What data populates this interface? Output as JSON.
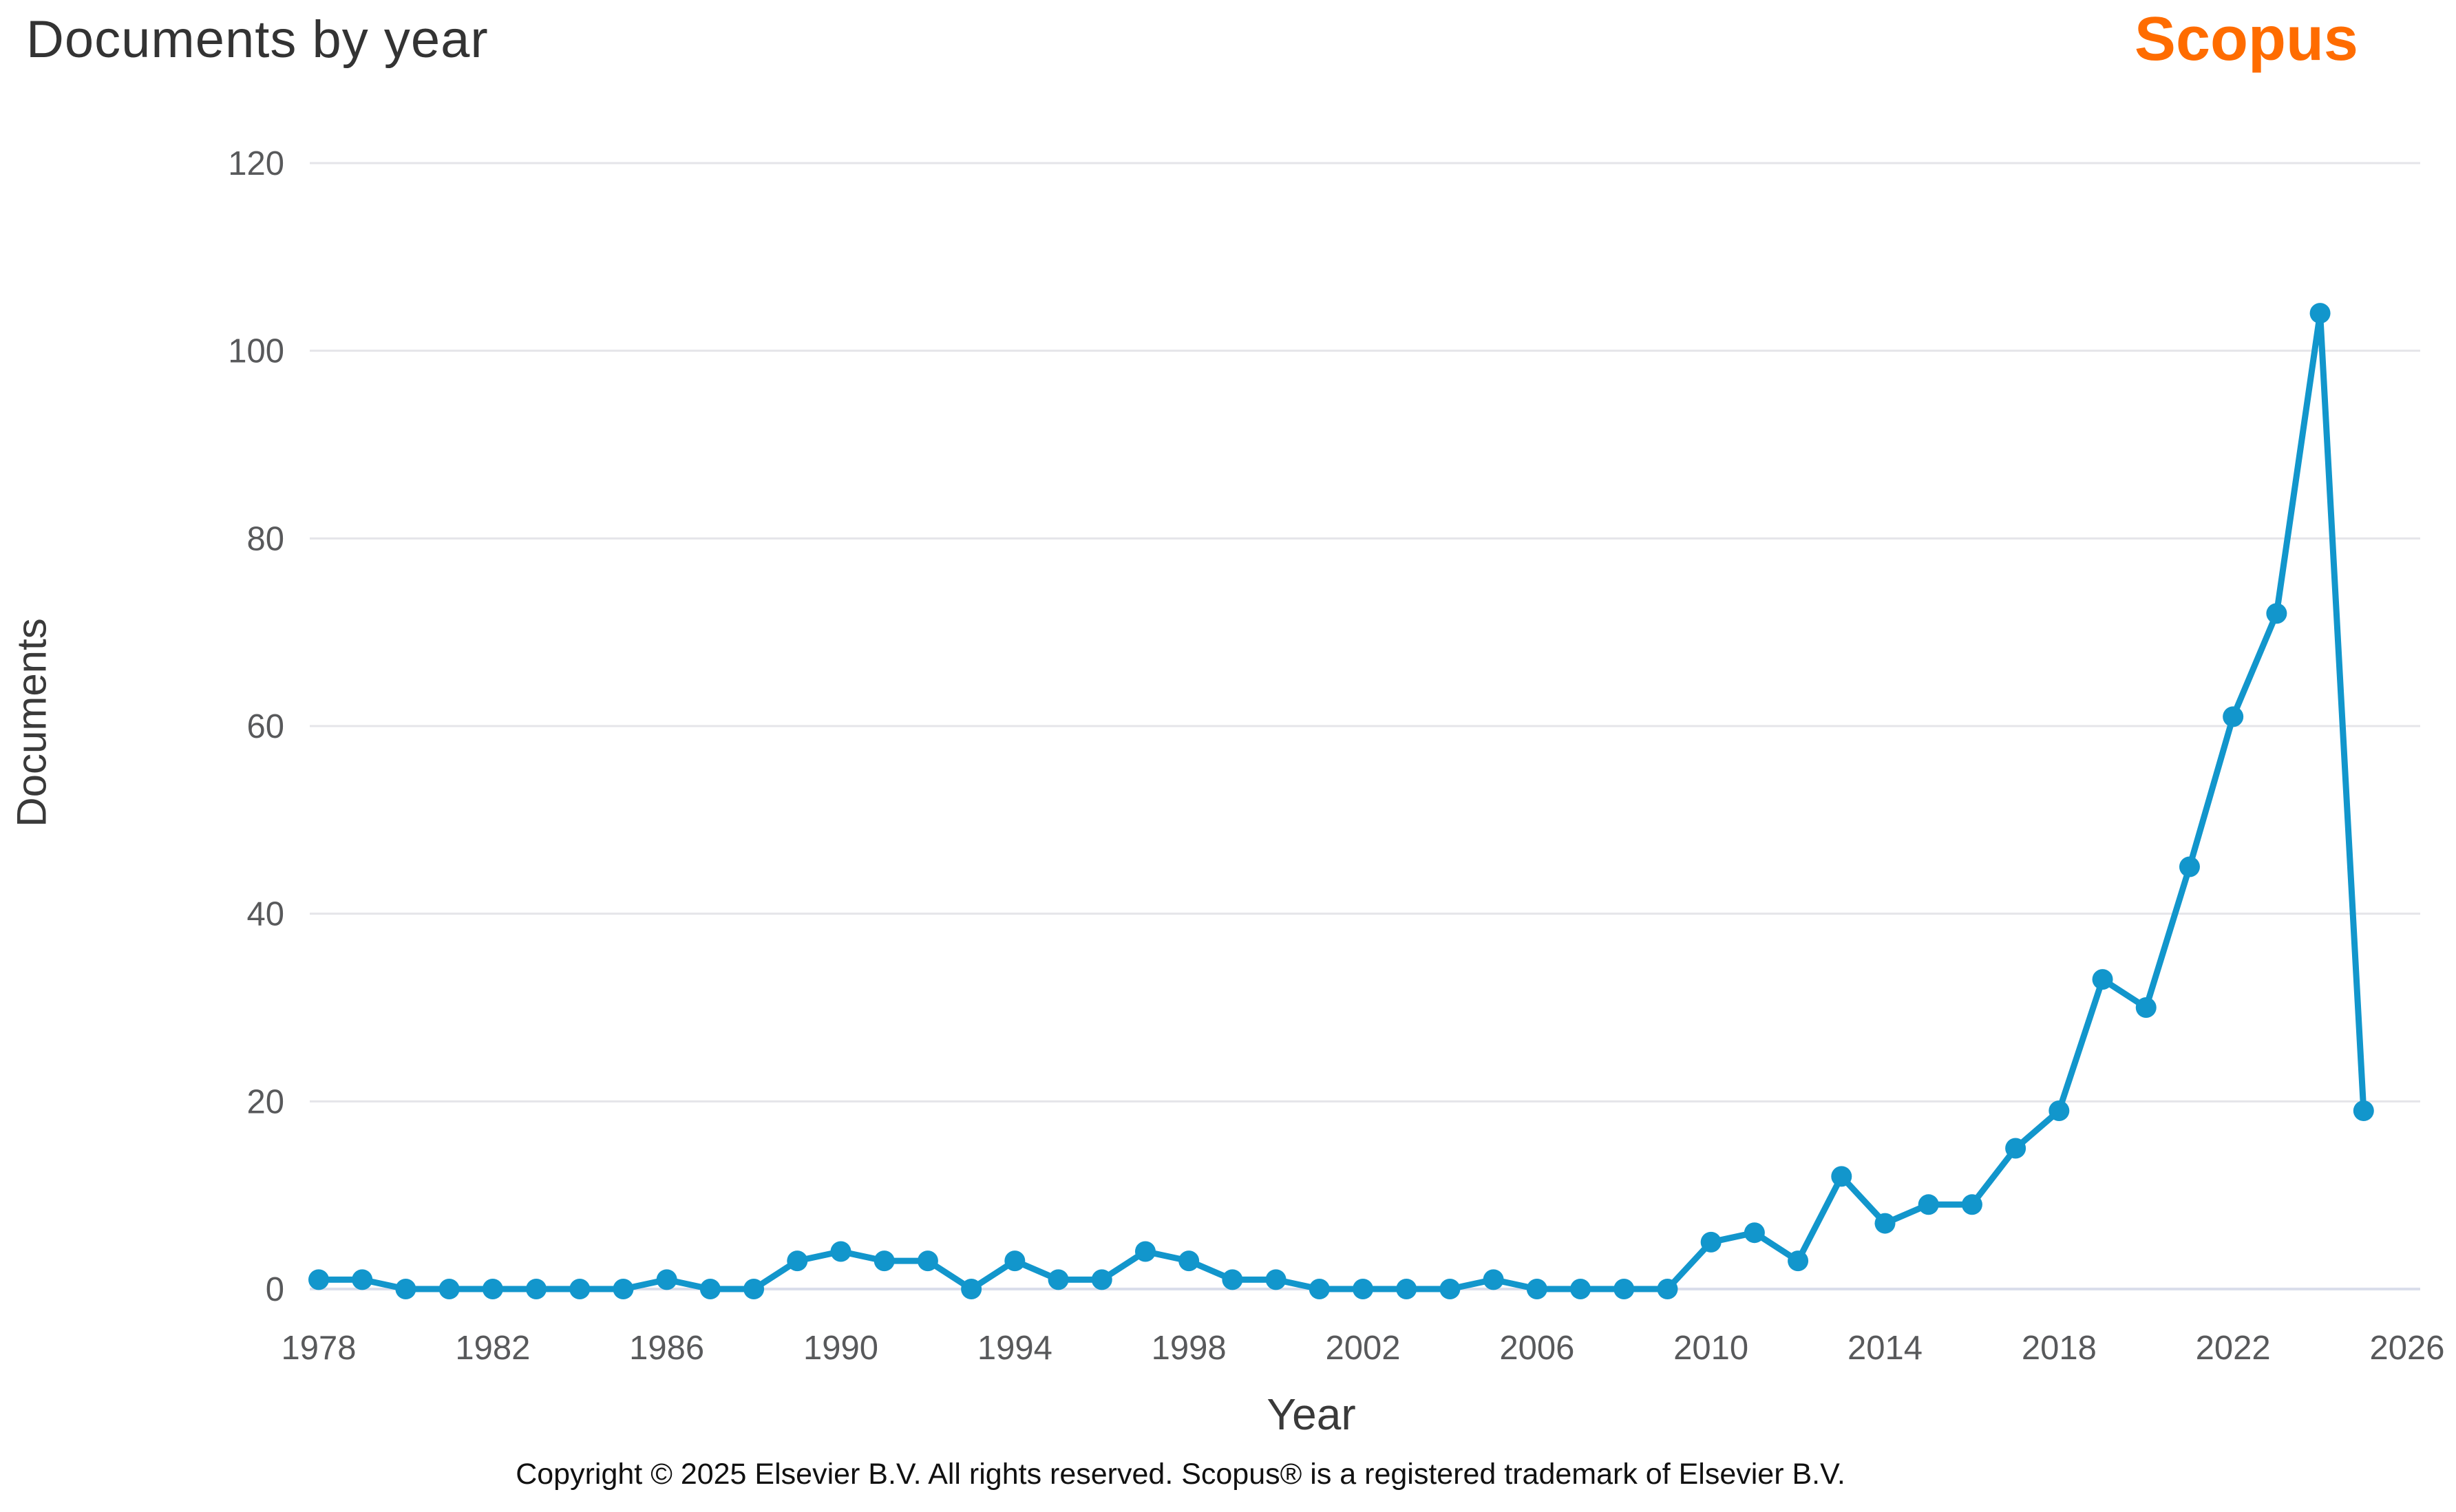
{
  "header": {
    "title": "Documents by year",
    "logo_text": "Scopus"
  },
  "footer": {
    "copyright": "Copyright © 2025 Elsevier B.V. All rights reserved. Scopus® is a registered trademark of Elsevier B.V."
  },
  "colors": {
    "line": "#1296cc",
    "marker": "#1296cc",
    "logo_orange": "#ff6c00",
    "grid": "#e5e5e9",
    "tick_text": "#58595b",
    "title_text": "#333333"
  },
  "chart_data": {
    "type": "line",
    "title": "Documents by year",
    "xlabel": "Year",
    "ylabel": "Documents",
    "xlim": [
      1977.5,
      2026.5
    ],
    "ylim": [
      0,
      120
    ],
    "y_ticks": [
      0,
      20,
      40,
      60,
      80,
      100,
      120
    ],
    "x_ticks": [
      1978,
      1982,
      1986,
      1990,
      1994,
      1998,
      2002,
      2006,
      2010,
      2014,
      2018,
      2022,
      2026
    ],
    "grid": true,
    "legend": false,
    "series": [
      {
        "name": "Documents",
        "x": [
          1978,
          1979,
          1980,
          1981,
          1982,
          1983,
          1984,
          1985,
          1986,
          1987,
          1988,
          1989,
          1990,
          1991,
          1992,
          1993,
          1994,
          1995,
          1996,
          1997,
          1998,
          1999,
          2000,
          2001,
          2002,
          2003,
          2004,
          2005,
          2006,
          2007,
          2008,
          2009,
          2010,
          2011,
          2012,
          2013,
          2014,
          2015,
          2016,
          2017,
          2018,
          2019,
          2020,
          2021,
          2022,
          2023,
          2024,
          2025
        ],
        "values": [
          1,
          1,
          0,
          0,
          0,
          0,
          0,
          0,
          1,
          0,
          0,
          3,
          4,
          3,
          3,
          0,
          3,
          1,
          1,
          4,
          3,
          1,
          1,
          0,
          0,
          0,
          0,
          1,
          0,
          0,
          0,
          0,
          5,
          6,
          3,
          12,
          7,
          9,
          9,
          15,
          19,
          33,
          30,
          45,
          61,
          72,
          104,
          19
        ]
      }
    ]
  }
}
